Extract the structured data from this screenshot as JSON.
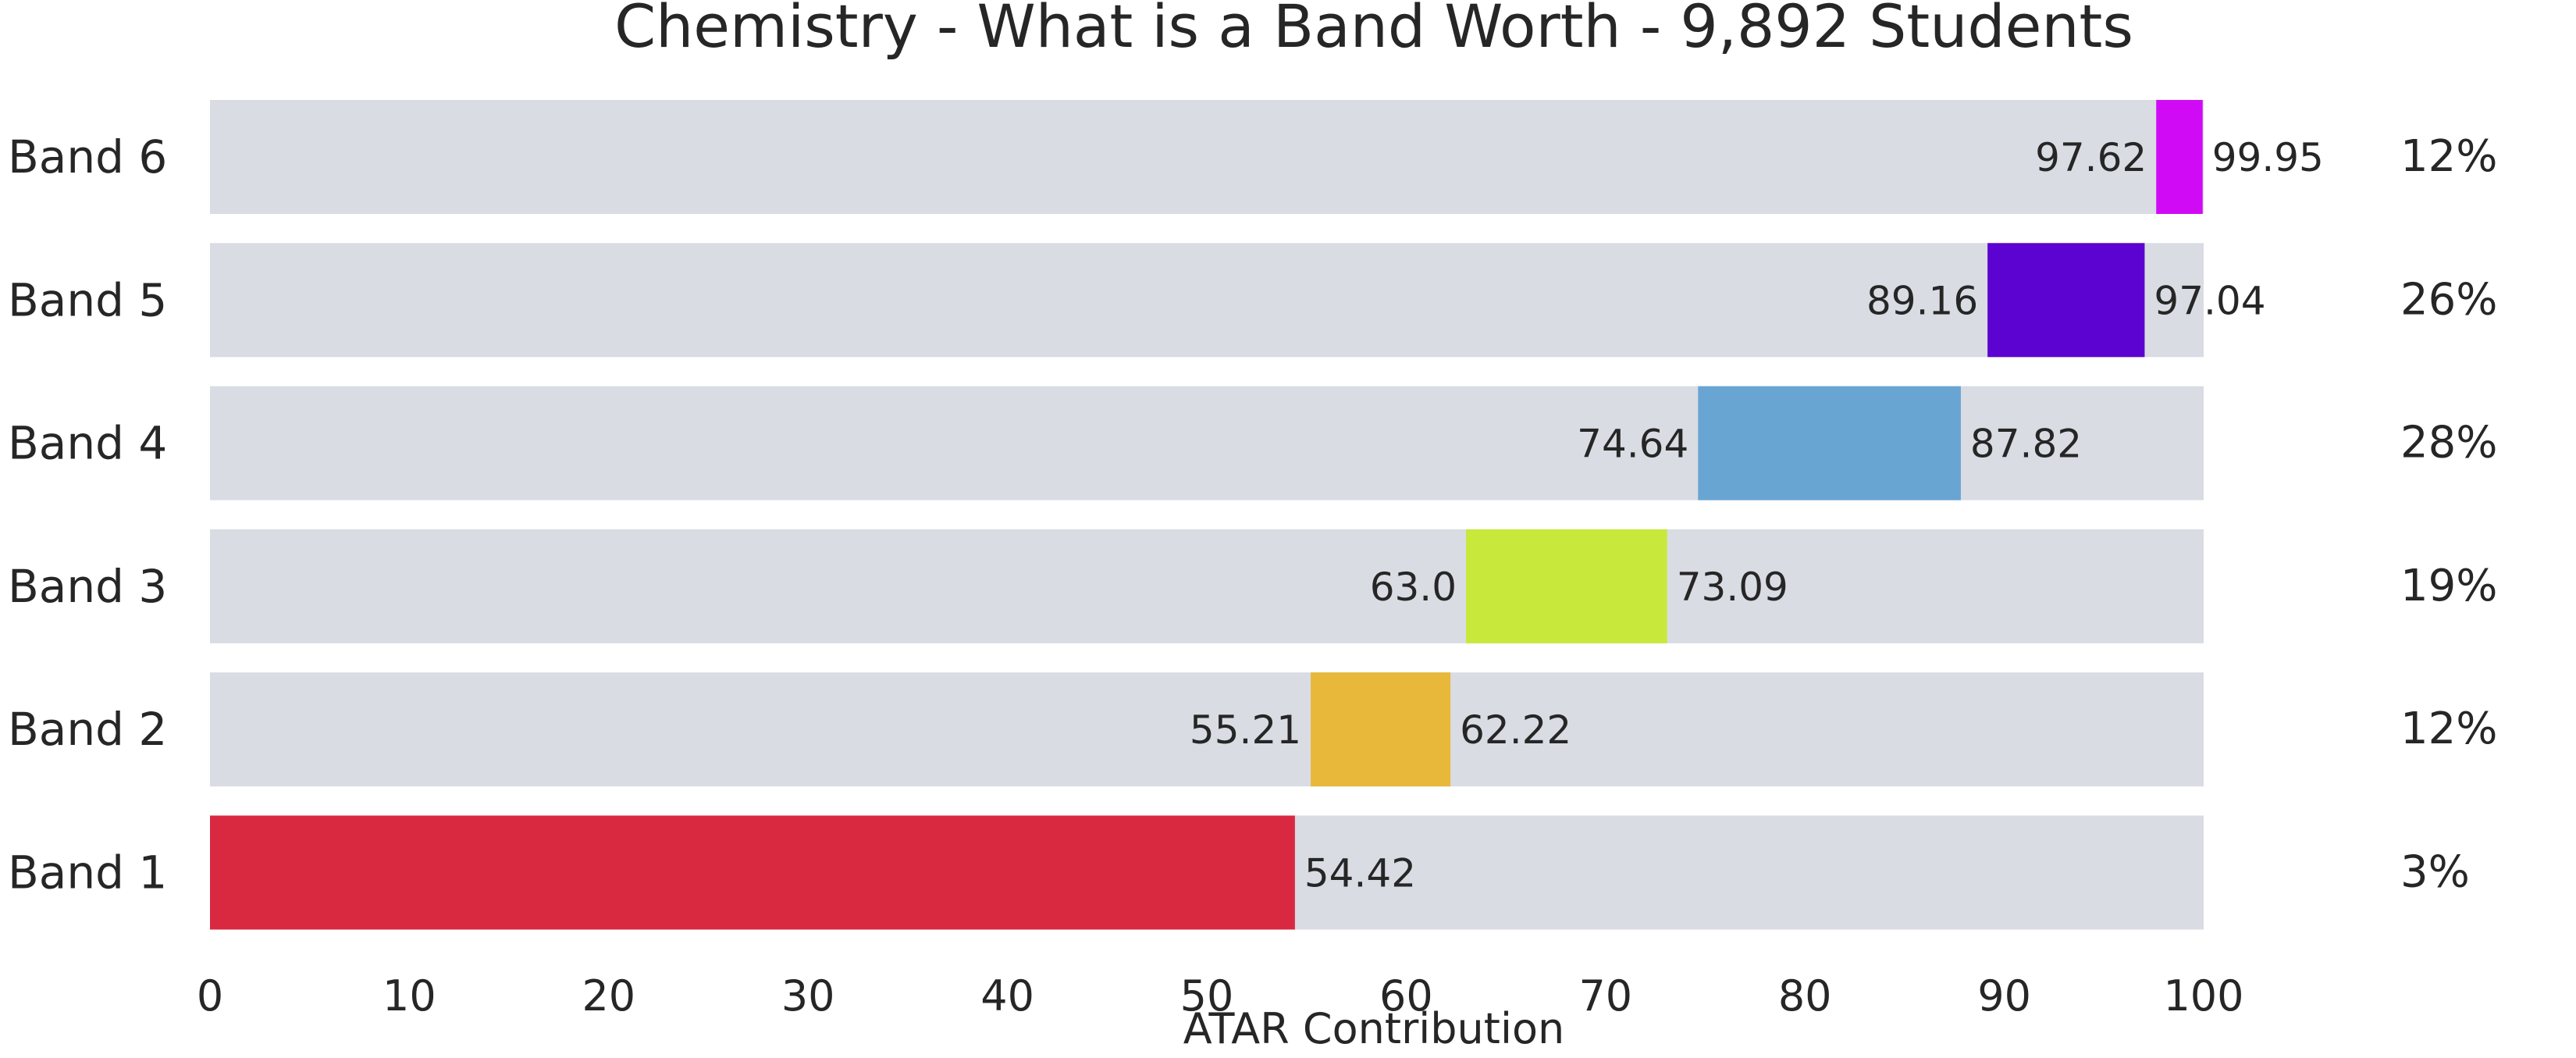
{
  "chart_data": {
    "type": "bar",
    "orientation": "horizontal",
    "title": "Chemistry - What is a Band Worth - 9,892 Students",
    "xlabel": "ATAR Contribution",
    "ylabel": "",
    "xlim": [
      0,
      100
    ],
    "xticks": [
      "0",
      "10",
      "20",
      "30",
      "40",
      "50",
      "60",
      "70",
      "80",
      "90",
      "100"
    ],
    "grid": false,
    "background_track_color": "#d9dce3",
    "categories": [
      "Band 6",
      "Band 5",
      "Band 4",
      "Band 3",
      "Band 2",
      "Band 1"
    ],
    "bands": [
      {
        "label": "Band 6",
        "start": 97.62,
        "end": 99.95,
        "start_label": "97.62",
        "end_label": "99.95",
        "percent": "12%",
        "color": "#d10af5"
      },
      {
        "label": "Band 5",
        "start": 89.16,
        "end": 97.04,
        "start_label": "89.16",
        "end_label": "97.04",
        "percent": "26%",
        "color": "#5c02d1"
      },
      {
        "label": "Band 4",
        "start": 74.64,
        "end": 87.82,
        "start_label": "74.64",
        "end_label": "87.82",
        "percent": "28%",
        "color": "#68a5d3"
      },
      {
        "label": "Band 3",
        "start": 63.0,
        "end": 73.09,
        "start_label": "63.0",
        "end_label": "73.09",
        "percent": "19%",
        "color": "#c8e83c"
      },
      {
        "label": "Band 2",
        "start": 55.21,
        "end": 62.22,
        "start_label": "55.21",
        "end_label": "62.22",
        "percent": "12%",
        "color": "#e8b83a"
      },
      {
        "label": "Band 1",
        "start": 0,
        "end": 54.42,
        "start_label": "",
        "end_label": "54.42",
        "percent": "3%",
        "color": "#d92940"
      }
    ]
  }
}
